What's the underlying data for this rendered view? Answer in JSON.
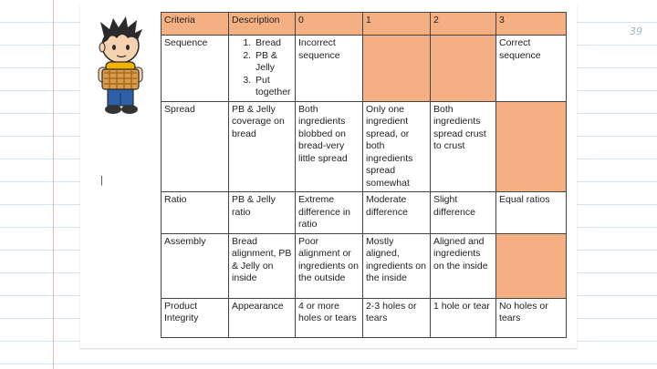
{
  "page_number": "39",
  "stray_mark": "|",
  "table": {
    "headers": [
      "Criteria",
      "Description",
      "0",
      "1",
      "2",
      "3"
    ],
    "rows": [
      {
        "criteria": "Sequence",
        "description_list": [
          "Bread",
          "PB & Jelly",
          "Put together"
        ],
        "c0": "Incorrect sequence",
        "c1": "",
        "c2": "",
        "c3": "Correct sequence",
        "highlight": [
          false,
          true,
          true,
          false
        ]
      },
      {
        "criteria": "Spread",
        "description": "PB & Jelly coverage on bread",
        "c0": "Both ingredients blobbed on bread-very little spread",
        "c1": "Only one ingredient spread, or both ingredients spread somewhat",
        "c2": "Both ingredients spread crust to crust",
        "c3": "",
        "highlight": [
          false,
          false,
          false,
          true
        ]
      },
      {
        "criteria": "Ratio",
        "description": "PB & Jelly ratio",
        "c0": "Extreme difference in ratio",
        "c1": "Moderate difference",
        "c2": "Slight difference",
        "c3": "Equal ratios",
        "highlight": [
          false,
          false,
          false,
          false
        ]
      },
      {
        "criteria": "Assembly",
        "description": "Bread alignment, PB & Jelly on inside",
        "c0": "Poor alignment or ingredients on the outside",
        "c1": "Mostly aligned, ingredients on the inside",
        "c2": "Aligned and ingredients on the inside",
        "c3": "",
        "highlight": [
          false,
          false,
          false,
          true
        ]
      },
      {
        "criteria": "Product Integrity",
        "description": "Appearance",
        "c0": "4 or more holes or tears",
        "c1": "2-3 holes or tears",
        "c2": "1 hole or tear",
        "c3": "No holes or tears",
        "highlight": [
          false,
          false,
          false,
          false
        ]
      }
    ]
  },
  "colors": {
    "highlight": "#f4b083",
    "paper_line": "#d7e3ee",
    "border": "#444444"
  },
  "illustration": {
    "icon": "boy-holding-sandwich-basket-icon"
  }
}
